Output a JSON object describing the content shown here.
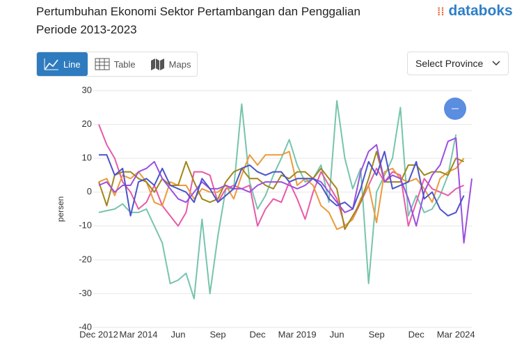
{
  "header": {
    "title_line1": "Pertumbuhan Ekonomi Sektor Pertambangan dan Penggalian",
    "title_line2": "Periode 2013-2023",
    "logo": "databoks"
  },
  "tabs": [
    "Line",
    "Table",
    "Maps"
  ],
  "select": "Select Province",
  "chart_data": {
    "type": "line",
    "y_label": "persen",
    "categories": [
      "Dec 2012",
      null,
      null,
      null,
      null,
      "Mar 2014",
      null,
      null,
      null,
      null,
      "Jun",
      null,
      null,
      null,
      null,
      "Sep",
      null,
      null,
      null,
      null,
      "Dec",
      null,
      null,
      null,
      null,
      "Mar 2019",
      null,
      null,
      null,
      null,
      "Jun",
      null,
      null,
      null,
      null,
      "Sep",
      null,
      null,
      null,
      null,
      "Dec",
      null,
      null,
      null,
      null,
      "Mar 2024",
      null,
      null
    ],
    "ylim": [
      -40,
      30
    ],
    "yticks": [
      -40,
      -30,
      -20,
      -10,
      0,
      10,
      20,
      30
    ],
    "grid": true,
    "series": [
      {
        "color": "#76c4ad",
        "values": [
          -6,
          -5.5,
          -5,
          -3.5,
          -6,
          -6,
          -5,
          -10,
          -15,
          -27,
          -26,
          -24,
          -31.5,
          -8,
          -30,
          -13,
          1,
          1,
          26,
          3,
          -5,
          -1,
          5,
          10,
          15.5,
          8,
          3,
          4,
          8,
          -3,
          27,
          10,
          1,
          7,
          -27,
          0,
          5,
          10,
          25,
          -7,
          -1,
          -6,
          -5,
          -1,
          5,
          17,
          null,
          null
        ]
      },
      {
        "color": "#e85aa8",
        "values": [
          20,
          14,
          10,
          3,
          0,
          -5,
          -3,
          2,
          -4,
          -7,
          -10,
          -6,
          6,
          6,
          5,
          -3,
          1,
          2,
          1,
          2,
          -10,
          -5,
          -2,
          -3,
          3,
          -2,
          -8,
          0,
          6,
          2,
          -2,
          -10,
          -8,
          -3,
          2,
          7,
          3,
          6,
          5,
          -10,
          -3,
          4,
          1,
          0,
          -1,
          1,
          2,
          null
        ]
      },
      {
        "color": "#ec9a3a",
        "values": [
          3,
          4,
          -1,
          5,
          4,
          6,
          3,
          -3,
          -4,
          3,
          2,
          2,
          -2,
          1,
          0,
          0,
          2,
          -2,
          5,
          11,
          8,
          11,
          11,
          11,
          12,
          2,
          4,
          2,
          -4,
          -6,
          -11,
          -10,
          -8,
          -2,
          2,
          -9,
          6,
          7,
          4,
          3,
          4,
          1,
          -3,
          4,
          6,
          7,
          10,
          null
        ]
      },
      {
        "color": "#a0861a",
        "values": [
          3,
          -4,
          5,
          6,
          6,
          4,
          3,
          0,
          4,
          2,
          2,
          9,
          3,
          -2,
          -3,
          -2,
          3,
          6,
          7,
          4,
          4,
          2,
          1,
          5,
          4,
          6,
          6,
          4,
          7,
          4,
          1,
          -11,
          -7,
          -3,
          4,
          12,
          3,
          3,
          3,
          8,
          8,
          5,
          6,
          6,
          5,
          10,
          9,
          null
        ]
      },
      {
        "color": "#9b4fe0",
        "values": [
          2,
          3,
          0,
          2,
          2,
          6,
          7,
          9,
          4,
          1,
          -2,
          -3,
          0,
          3,
          1,
          1,
          2,
          1,
          1,
          0,
          2,
          3,
          3,
          3,
          2,
          1,
          2,
          4,
          3,
          0,
          -3,
          -6,
          -5,
          6,
          12,
          14,
          3,
          5,
          4,
          -2,
          -10,
          0,
          5,
          8,
          15,
          16,
          -15,
          4
        ]
      },
      {
        "color": "#4b54c9",
        "values": [
          11,
          11,
          5,
          7,
          -7,
          3,
          4,
          2,
          7,
          2,
          1,
          0,
          -3,
          4,
          1,
          -3,
          -1,
          1,
          7,
          8,
          6,
          5,
          6,
          6,
          3,
          4,
          4,
          4,
          2,
          -2,
          -4,
          -3,
          -5,
          1,
          9,
          5,
          12,
          1,
          2,
          3,
          9,
          -2,
          0,
          -5,
          -7,
          -6,
          -1,
          null
        ]
      }
    ]
  }
}
